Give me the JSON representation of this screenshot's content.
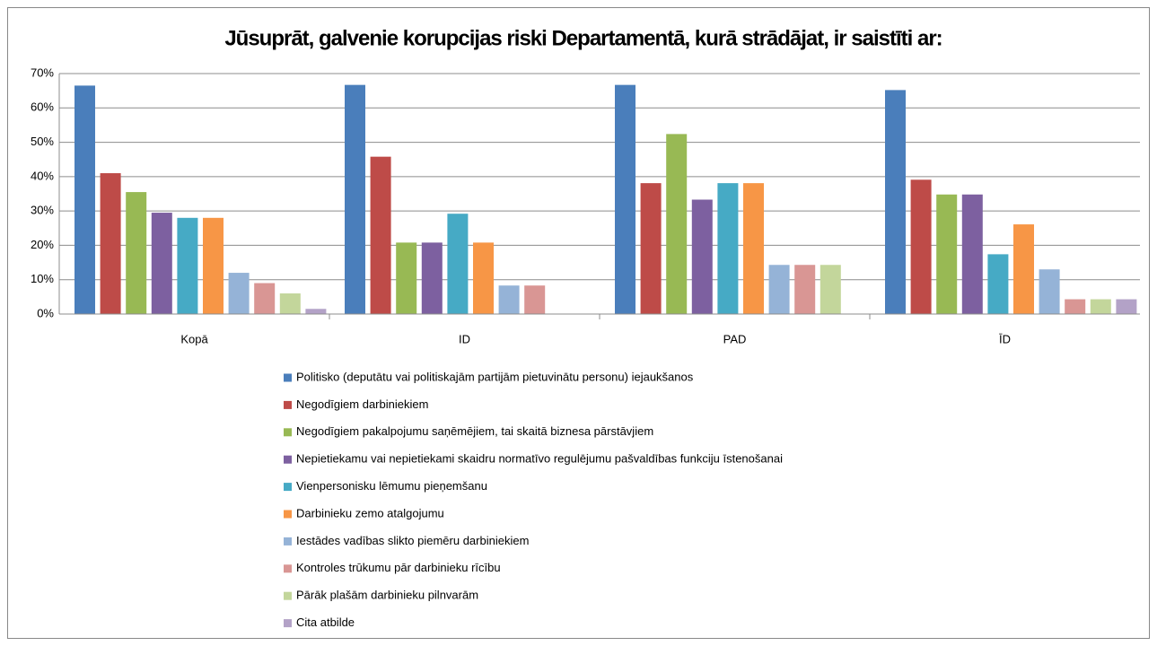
{
  "chart_data": {
    "type": "bar",
    "title": "Jūsuprāt, galvenie korupcijas riski Departamentā, kurā strādājat, ir saistīti ar:",
    "categories": [
      "Kopā",
      "ID",
      "PAD",
      "ĪD"
    ],
    "series": [
      {
        "name": "Politisko (deputātu vai politiskajām partijām pietuvinātu personu) iejaukšanos",
        "color": "#4a7ebb",
        "values": [
          66.5,
          66.7,
          66.7,
          65.2
        ]
      },
      {
        "name": "Negodīgiem darbiniekiem",
        "color": "#be4b48",
        "values": [
          41,
          45.8,
          38.1,
          39.1
        ]
      },
      {
        "name": "Negodīgiem pakalpojumu saņēmējiem, tai skaitā biznesa pārstāvjiem",
        "color": "#98b954",
        "values": [
          35.5,
          20.8,
          52.4,
          34.8
        ]
      },
      {
        "name": "Nepietiekamu vai nepietiekami skaidru normatīvo regulējumu pašvaldības funkciju īstenošanai",
        "color": "#7d60a0",
        "values": [
          29.5,
          20.8,
          33.3,
          34.8
        ]
      },
      {
        "name": "Vienpersonisku lēmumu pieņemšanu",
        "color": "#46aac5",
        "values": [
          28,
          29.2,
          38.1,
          17.4
        ]
      },
      {
        "name": "Darbinieku zemo atalgojumu",
        "color": "#f79646",
        "values": [
          28,
          20.8,
          38.1,
          26.1
        ]
      },
      {
        "name": "Iestādes vadības slikto piemēru darbiniekiem",
        "color": "#95b3d7",
        "values": [
          12,
          8.3,
          14.3,
          13
        ]
      },
      {
        "name": "Kontroles trūkumu pār darbinieku rīcību",
        "color": "#d99694",
        "values": [
          9,
          8.3,
          14.3,
          4.3
        ]
      },
      {
        "name": "Pārāk plašām darbinieku pilnvarām",
        "color": "#c3d69b",
        "values": [
          6,
          0,
          14.3,
          4.3
        ]
      },
      {
        "name": "Cita atbilde",
        "color": "#b3a2c7",
        "values": [
          1.5,
          0,
          0,
          4.3
        ]
      }
    ],
    "ylim": [
      0,
      70
    ],
    "yticks": [
      {
        "value": 0,
        "label": "0%"
      },
      {
        "value": 10,
        "label": "10%"
      },
      {
        "value": 20,
        "label": "20%"
      },
      {
        "value": 30,
        "label": "30%"
      },
      {
        "value": 40,
        "label": "40%"
      },
      {
        "value": 50,
        "label": "50%"
      },
      {
        "value": 60,
        "label": "60%"
      },
      {
        "value": 70,
        "label": "70%"
      }
    ],
    "grid": true,
    "legend": "bottom"
  }
}
